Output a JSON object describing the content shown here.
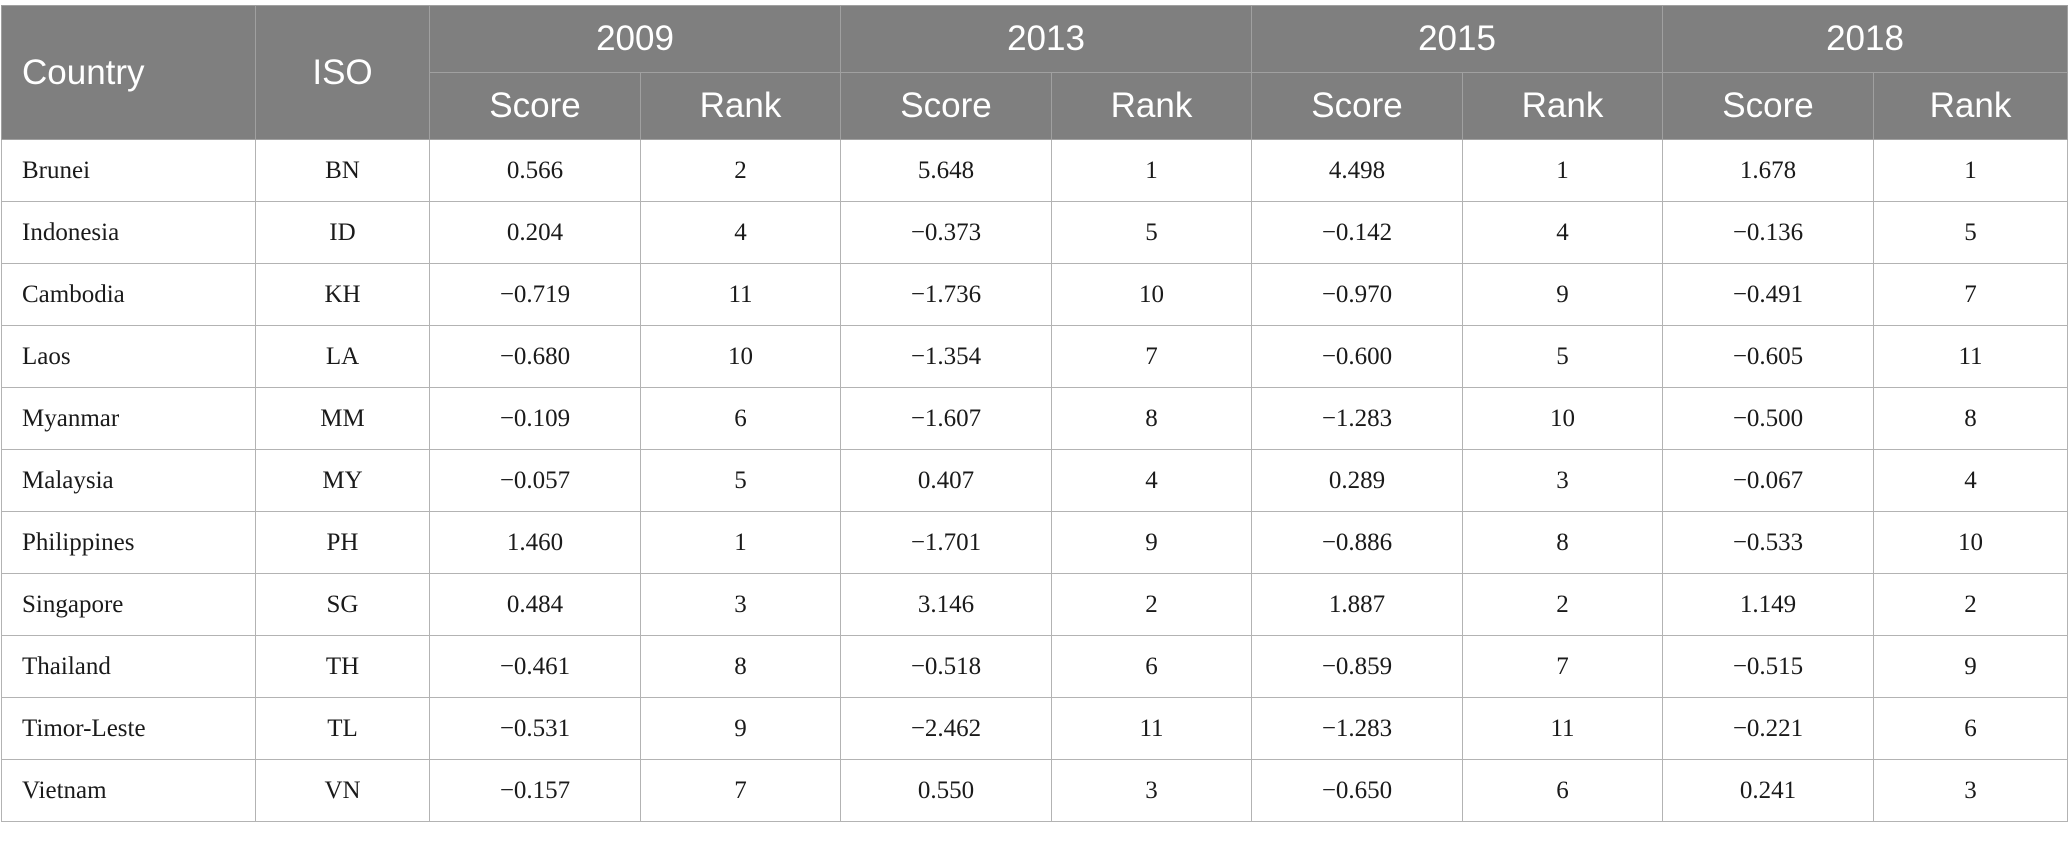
{
  "table": {
    "headers": {
      "country": "Country",
      "iso": "ISO",
      "years": [
        "2009",
        "2013",
        "2015",
        "2018"
      ],
      "score": "Score",
      "rank": "Rank"
    },
    "rows": [
      {
        "country": "Brunei",
        "iso": "BN",
        "values": [
          "0.566",
          "2",
          "5.648",
          "1",
          "4.498",
          "1",
          "1.678",
          "1"
        ]
      },
      {
        "country": "Indonesia",
        "iso": "ID",
        "values": [
          "0.204",
          "4",
          "−0.373",
          "5",
          "−0.142",
          "4",
          "−0.136",
          "5"
        ]
      },
      {
        "country": "Cambodia",
        "iso": "KH",
        "values": [
          "−0.719",
          "11",
          "−1.736",
          "10",
          "−0.970",
          "9",
          "−0.491",
          "7"
        ]
      },
      {
        "country": "Laos",
        "iso": "LA",
        "values": [
          "−0.680",
          "10",
          "−1.354",
          "7",
          "−0.600",
          "5",
          "−0.605",
          "11"
        ]
      },
      {
        "country": "Myanmar",
        "iso": "MM",
        "values": [
          "−0.109",
          "6",
          "−1.607",
          "8",
          "−1.283",
          "10",
          "−0.500",
          "8"
        ]
      },
      {
        "country": "Malaysia",
        "iso": "MY",
        "values": [
          "−0.057",
          "5",
          "0.407",
          "4",
          "0.289",
          "3",
          "−0.067",
          "4"
        ]
      },
      {
        "country": "Philippines",
        "iso": "PH",
        "values": [
          "1.460",
          "1",
          "−1.701",
          "9",
          "−0.886",
          "8",
          "−0.533",
          "10"
        ]
      },
      {
        "country": "Singapore",
        "iso": "SG",
        "values": [
          "0.484",
          "3",
          "3.146",
          "2",
          "1.887",
          "2",
          "1.149",
          "2"
        ]
      },
      {
        "country": "Thailand",
        "iso": "TH",
        "values": [
          "−0.461",
          "8",
          "−0.518",
          "6",
          "−0.859",
          "7",
          "−0.515",
          "9"
        ]
      },
      {
        "country": "Timor-Leste",
        "iso": "TL",
        "values": [
          "−0.531",
          "9",
          "−2.462",
          "11",
          "−1.283",
          "11",
          "−0.221",
          "6"
        ]
      },
      {
        "country": "Vietnam",
        "iso": "VN",
        "values": [
          "−0.157",
          "7",
          "0.550",
          "3",
          "−0.650",
          "6",
          "0.241",
          "3"
        ]
      }
    ]
  }
}
